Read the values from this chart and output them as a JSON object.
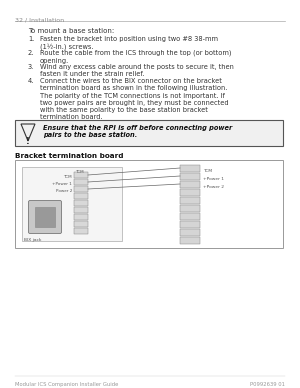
{
  "bg_color": "#ffffff",
  "header_text": "32 / Installation",
  "intro_text": "To mount a base station:",
  "steps": [
    [
      "1.",
      "Fasten the bracket into position using two #8 38-mm\n(1½-in.) screws."
    ],
    [
      "2.",
      "Route the cable from the ICS through the top (or bottom)\nopening."
    ],
    [
      "3.",
      "Wind any excess cable around the posts to secure it, then\nfasten it under the strain relief."
    ],
    [
      "4.",
      "Connect the wires to the BIX connector on the bracket\ntermination board as shown in the following illustration."
    ]
  ],
  "polarity_text": "The polarity of the TCM connections is not important. If\ntwo power pairs are brought in, they must be connected\nwith the same polarity to the base station bracket\ntermination board.",
  "warning_text": "Ensure that the RPI is off before connecting power\npairs to the base station.",
  "bracket_label": "Bracket termination board",
  "bix_jack_label": "BIX jack",
  "tcm_left": "TCM",
  "power1_left": "+Power 1",
  "power2_left": "Power 2",
  "tcm_right": "TCM",
  "plus_power1_right": "+Power 1",
  "plus_power2_right": "+Power 2",
  "footer_left": "Modular ICS Companion Installer Guide",
  "footer_right": "P0992639 01"
}
